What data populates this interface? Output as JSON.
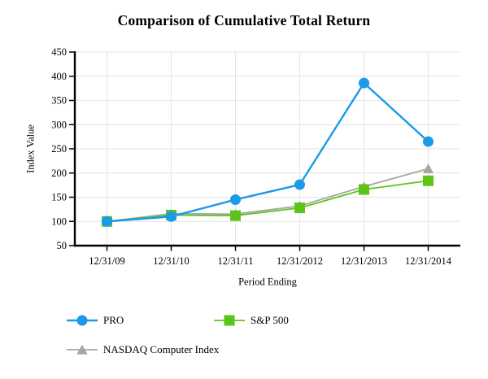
{
  "title": "Comparison of Cumulative Total Return",
  "chart_data": {
    "type": "line",
    "title": "Comparison of Cumulative Total Return",
    "xlabel": "Period Ending",
    "ylabel": "Index Value",
    "categories": [
      "12/31/09",
      "12/31/10",
      "12/31/11",
      "12/31/2012",
      "12/31/2013",
      "12/31/2014"
    ],
    "series": [
      {
        "name": "NASDAQ Computer Index",
        "marker": "triangle",
        "color": "#A5A5A5",
        "line_width": 1.8,
        "values": [
          100,
          116,
          115,
          132,
          172,
          209
        ]
      },
      {
        "name": "S&P 500",
        "marker": "square",
        "color": "#5CC417",
        "line_width": 1.8,
        "values": [
          100,
          113,
          112,
          128,
          166,
          184
        ]
      },
      {
        "name": "PRO",
        "marker": "circle",
        "color": "#1A9AE8",
        "line_width": 2.4,
        "values": [
          100,
          110,
          145,
          176,
          386,
          265
        ]
      }
    ],
    "ylim": [
      50,
      450
    ],
    "ytick_step": 50,
    "yticks": [
      50,
      100,
      150,
      200,
      250,
      300,
      350,
      400,
      450
    ],
    "grid": true,
    "grid_color": "#E4E4E4",
    "axis_color": "#000000",
    "legend_position": "bottom-left",
    "legend_order": [
      "PRO",
      "S&P 500",
      "NASDAQ Computer Index"
    ]
  }
}
